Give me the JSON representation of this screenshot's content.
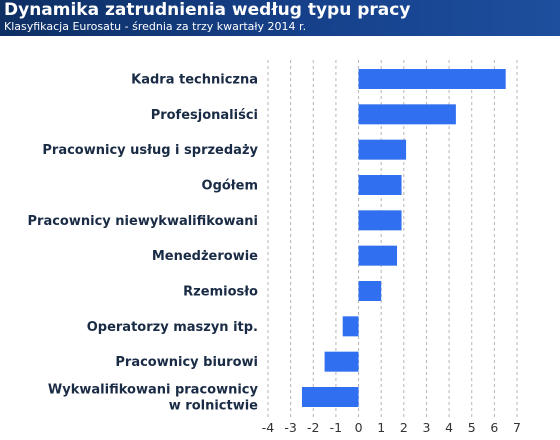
{
  "header": {
    "title": "Dynamika zatrudnienia według typu pracy",
    "subtitle": "Klasyfikacja Eurosatu - średnia za trzy kwartały 2014 r."
  },
  "colors": {
    "header_bg": "#16408a",
    "bar": "#2f6ff0",
    "grid": "#b5b5b5"
  },
  "chart_data": {
    "type": "bar",
    "orientation": "horizontal",
    "categories": [
      [
        "Kadra techniczna"
      ],
      [
        "Profesjonaliści"
      ],
      [
        "Pracownicy usług i sprzedaży"
      ],
      [
        "Ogółem"
      ],
      [
        "Pracownicy niewykwalifikowani"
      ],
      [
        "Menedżerowie"
      ],
      [
        "Rzemiosło"
      ],
      [
        "Operatorzy maszyn itp."
      ],
      [
        "Pracownicy biurowi"
      ],
      [
        "Wykwalifikowani pracownicy",
        "w rolnictwie"
      ]
    ],
    "values": [
      6.5,
      4.3,
      2.1,
      1.9,
      1.9,
      1.7,
      1.0,
      -0.7,
      -1.5,
      -2.5
    ],
    "xlim": [
      -4,
      7
    ],
    "xticks": [
      -4,
      -3,
      -2,
      -1,
      0,
      1,
      2,
      3,
      4,
      5,
      6,
      7
    ],
    "grid": "vertical-dashed"
  }
}
